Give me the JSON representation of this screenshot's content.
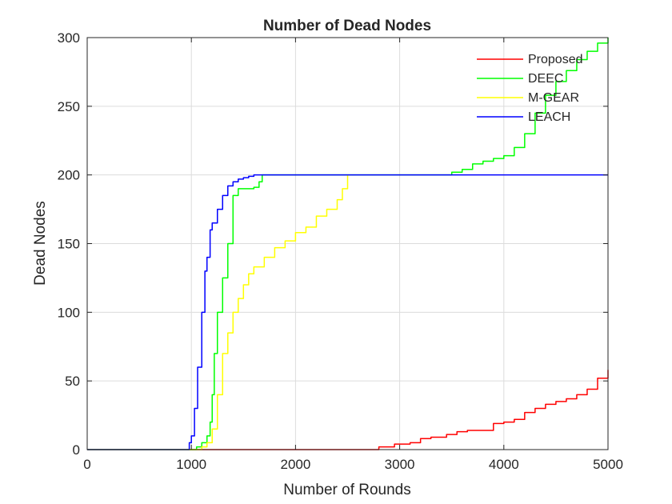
{
  "chart_data": {
    "type": "line",
    "title": "Number of Dead Nodes",
    "xlabel": "Number of Rounds",
    "ylabel": "Dead Nodes",
    "xlim": [
      0,
      5000
    ],
    "ylim": [
      0,
      300
    ],
    "xticks": [
      0,
      1000,
      2000,
      3000,
      4000,
      5000
    ],
    "yticks": [
      0,
      50,
      100,
      150,
      200,
      250,
      300
    ],
    "grid": true,
    "legend_position": "top-right",
    "series": [
      {
        "name": "Proposed",
        "color": "#ff0000",
        "x": [
          0,
          2500,
          2800,
          2950,
          3100,
          3200,
          3300,
          3450,
          3550,
          3650,
          3800,
          3900,
          4000,
          4100,
          4200,
          4300,
          4400,
          4500,
          4600,
          4700,
          4800,
          4900,
          5000
        ],
        "y": [
          0,
          0,
          2,
          4,
          5,
          8,
          9,
          11,
          13,
          14,
          14,
          19,
          20,
          22,
          27,
          30,
          33,
          35,
          37,
          40,
          44,
          52,
          58
        ]
      },
      {
        "name": "DEEC",
        "color": "#00ff00",
        "x": [
          0,
          980,
          1050,
          1100,
          1150,
          1180,
          1200,
          1220,
          1250,
          1300,
          1350,
          1400,
          1450,
          1500,
          1550,
          1600,
          1650,
          1680,
          3400,
          3500,
          3600,
          3700,
          3800,
          3900,
          4000,
          4100,
          4200,
          4300,
          4400,
          4500,
          4600,
          4700,
          4800,
          4900,
          5000
        ],
        "y": [
          0,
          0,
          2,
          5,
          10,
          20,
          40,
          70,
          100,
          125,
          150,
          185,
          190,
          190,
          190,
          191,
          195,
          200,
          200,
          202,
          204,
          208,
          210,
          212,
          214,
          220,
          230,
          245,
          258,
          268,
          276,
          284,
          290,
          296,
          300
        ]
      },
      {
        "name": "M-GEAR",
        "color": "#ffff00",
        "x": [
          0,
          1050,
          1100,
          1150,
          1200,
          1250,
          1300,
          1350,
          1400,
          1450,
          1500,
          1550,
          1600,
          1700,
          1800,
          1900,
          2000,
          2100,
          2200,
          2300,
          2400,
          2450,
          2500
        ],
        "y": [
          0,
          0,
          2,
          5,
          15,
          40,
          70,
          85,
          100,
          110,
          120,
          128,
          133,
          140,
          147,
          152,
          158,
          162,
          170,
          175,
          182,
          190,
          200
        ]
      },
      {
        "name": "LEACH",
        "color": "#0000ff",
        "x": [
          0,
          940,
          980,
          1000,
          1030,
          1060,
          1100,
          1130,
          1150,
          1180,
          1200,
          1250,
          1300,
          1350,
          1400,
          1450,
          1500,
          1550,
          1600,
          1650,
          5000
        ],
        "y": [
          0,
          0,
          5,
          10,
          30,
          60,
          100,
          130,
          140,
          160,
          165,
          175,
          185,
          192,
          195,
          197,
          198,
          199,
          200,
          200,
          200
        ]
      }
    ]
  }
}
